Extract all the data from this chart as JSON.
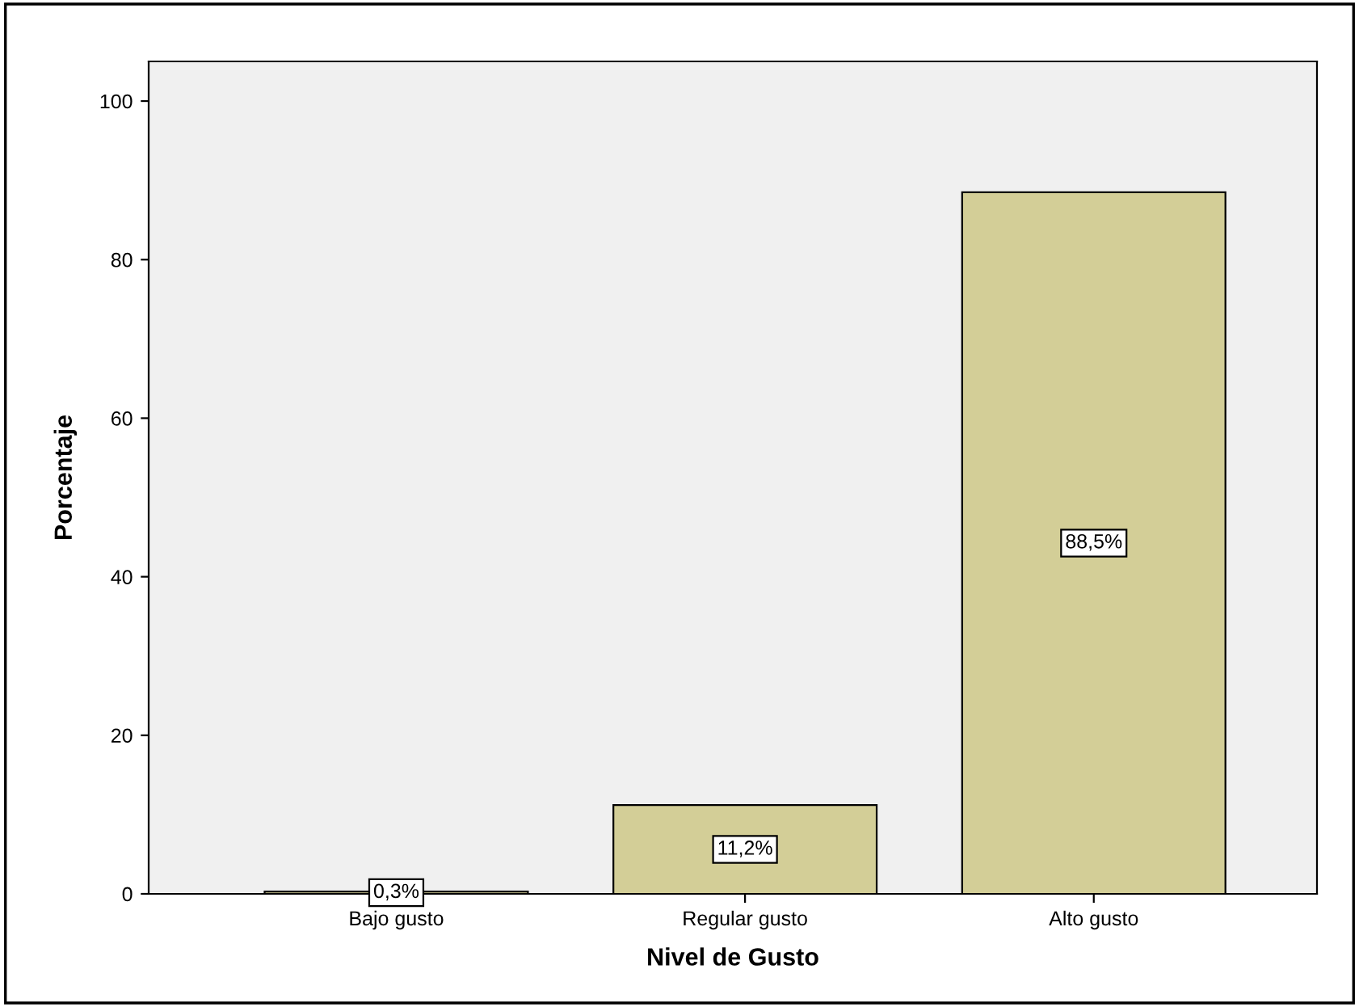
{
  "chart_data": {
    "type": "bar",
    "xlabel": "Nivel de Gusto",
    "ylabel": "Porcentaje",
    "categories": [
      "Bajo gusto",
      "Regular gusto",
      "Alto gusto"
    ],
    "values": [
      0.3,
      11.2,
      88.5
    ],
    "value_labels": [
      "0,3%",
      "11,2%",
      "88,5%"
    ],
    "color": "#d3ce97",
    "ylim": [
      0,
      105
    ],
    "yticks": [
      0,
      20,
      40,
      60,
      80,
      100
    ],
    "grid": false
  }
}
